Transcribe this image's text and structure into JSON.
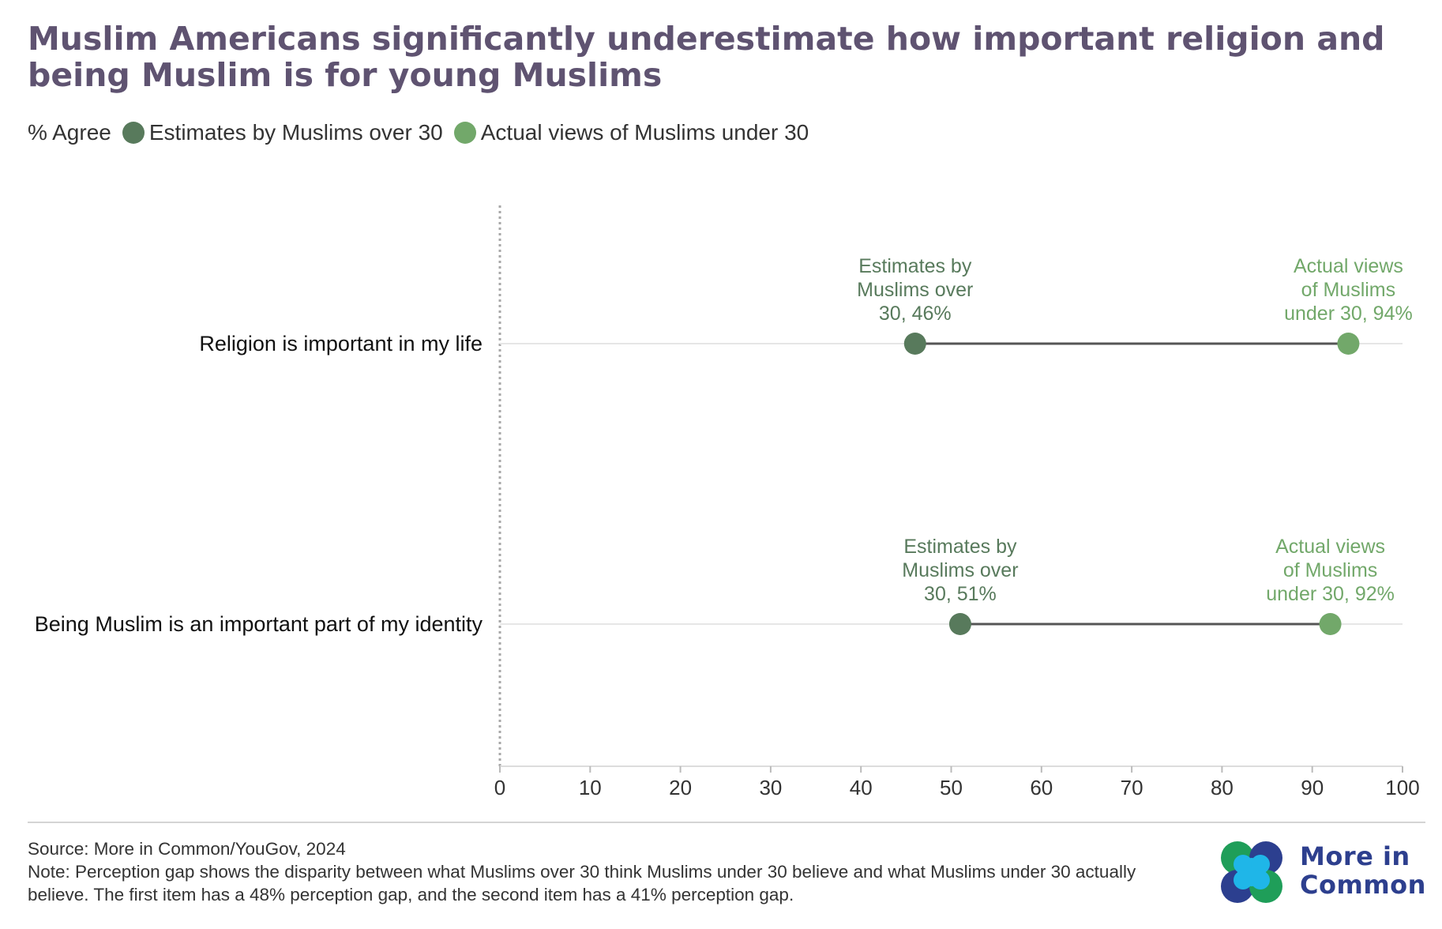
{
  "title": "Muslim Americans significantly underestimate how important religion and being Muslim is for young Muslims",
  "legend": {
    "prefix": "% Agree",
    "items": [
      {
        "label": "Estimates by Muslims over 30",
        "color": "#587a5c"
      },
      {
        "label": "Actual views of Muslims under 30",
        "color": "#72a86a"
      }
    ]
  },
  "chart_data": {
    "type": "dumbbell",
    "categories": [
      "Religion is important in my life",
      "Being Muslim is an important part of my identity"
    ],
    "series": [
      {
        "name": "Estimates by Muslims over 30",
        "values": [
          46,
          51
        ],
        "color": "#587a5c",
        "labels": [
          "Estimates by Muslims over 30, 46%",
          "Estimates by Muslims over 30, 51%"
        ]
      },
      {
        "name": "Actual views of Muslims under 30",
        "values": [
          94,
          92
        ],
        "color": "#72a86a",
        "labels": [
          "Actual views of Muslims under 30, 94%",
          "Actual views of Muslims under 30, 92%"
        ]
      }
    ],
    "label_lines": [
      [
        [
          "Estimates by",
          "Muslims over",
          "30, 46%"
        ],
        [
          "Actual views",
          "of Muslims",
          "under 30, 94%"
        ]
      ],
      [
        [
          "Estimates by",
          "Muslims over",
          "30, 51%"
        ],
        [
          "Actual views",
          "of Muslims",
          "under 30, 92%"
        ]
      ]
    ],
    "xlim": [
      0,
      100
    ],
    "xticks": [
      0,
      10,
      20,
      30,
      40,
      50,
      60,
      70,
      80,
      90,
      100
    ],
    "connector_color": "#555555",
    "label_colors": [
      "#587a5c",
      "#72a86a"
    ]
  },
  "source": "Source: More in Common/YouGov, 2024",
  "note": "Note: Perception gap shows the disparity between what Muslims over 30 think Muslims under 30 believe and what Muslims under 30 actually believe. The first item has a 48% perception gap, and the second item has a 41% perception gap.",
  "logo": {
    "text": "More in\nCommon",
    "colors": [
      "#1f9e59",
      "#2c3f8f",
      "#1fb6e8"
    ]
  }
}
